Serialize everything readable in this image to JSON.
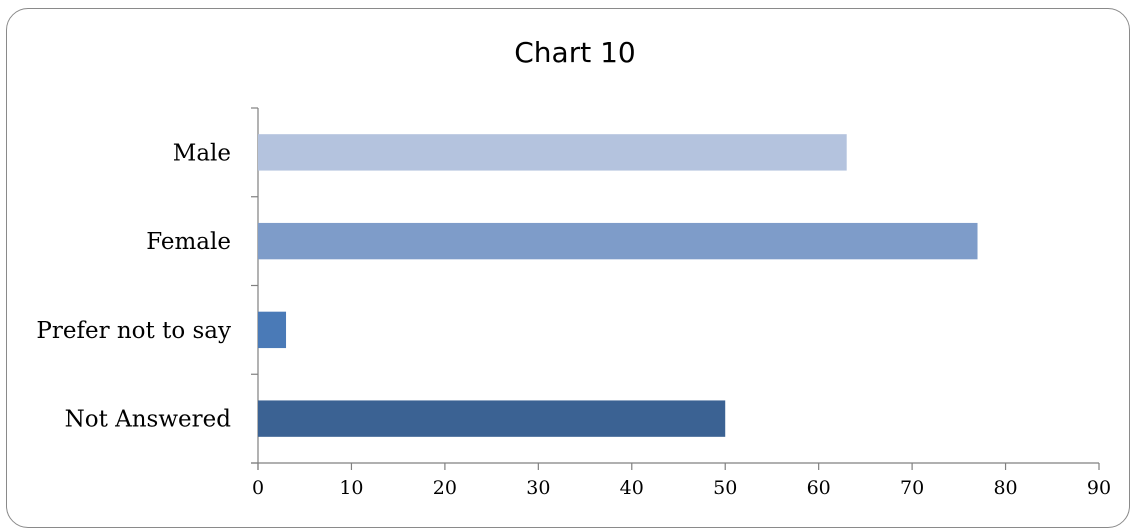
{
  "chart_data": {
    "type": "bar",
    "orientation": "horizontal",
    "title": "Chart 10",
    "categories": [
      "Male",
      "Female",
      "Prefer not to say",
      "Not Answered"
    ],
    "values": [
      63,
      77,
      3,
      50
    ],
    "xlim": [
      0,
      90
    ],
    "x_ticks": [
      "0",
      "10",
      "20",
      "30",
      "40",
      "50",
      "60",
      "70",
      "80",
      "90"
    ],
    "bar_colors": [
      "#b4c3de",
      "#7e9cc9",
      "#4a7ab7",
      "#3b6293"
    ],
    "grid": false,
    "legend": "none"
  }
}
